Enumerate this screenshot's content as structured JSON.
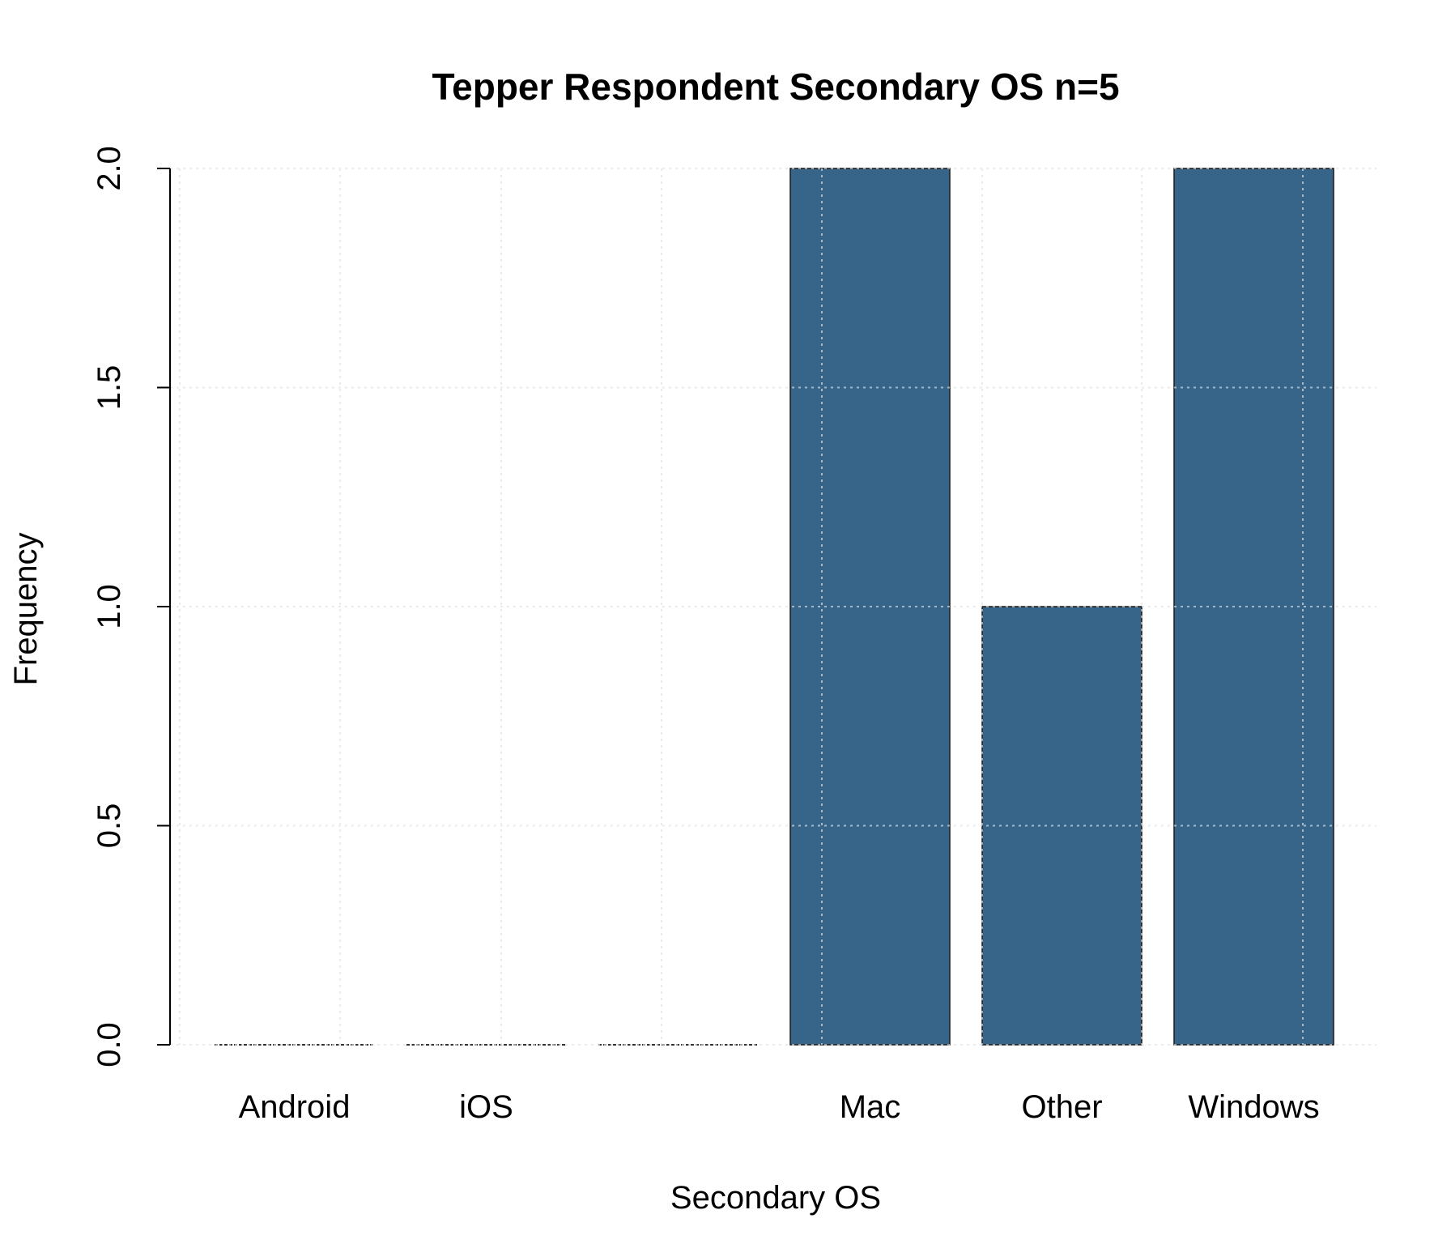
{
  "chart_data": {
    "type": "bar",
    "title": "Tepper Respondent Secondary OS n=5",
    "xlabel": "Secondary OS",
    "ylabel": "Frequency",
    "categories": [
      "Android",
      "iOS",
      "",
      "Mac",
      "Other",
      "Windows"
    ],
    "values": [
      0,
      0,
      0,
      2,
      1,
      2
    ],
    "ylim": [
      0,
      2
    ],
    "yticks": [
      "0.0",
      "0.5",
      "1.0",
      "1.5",
      "2.0"
    ],
    "grid": true,
    "legend": "none",
    "bar_color": "#376489",
    "grid_color": "#d3d3d3"
  }
}
